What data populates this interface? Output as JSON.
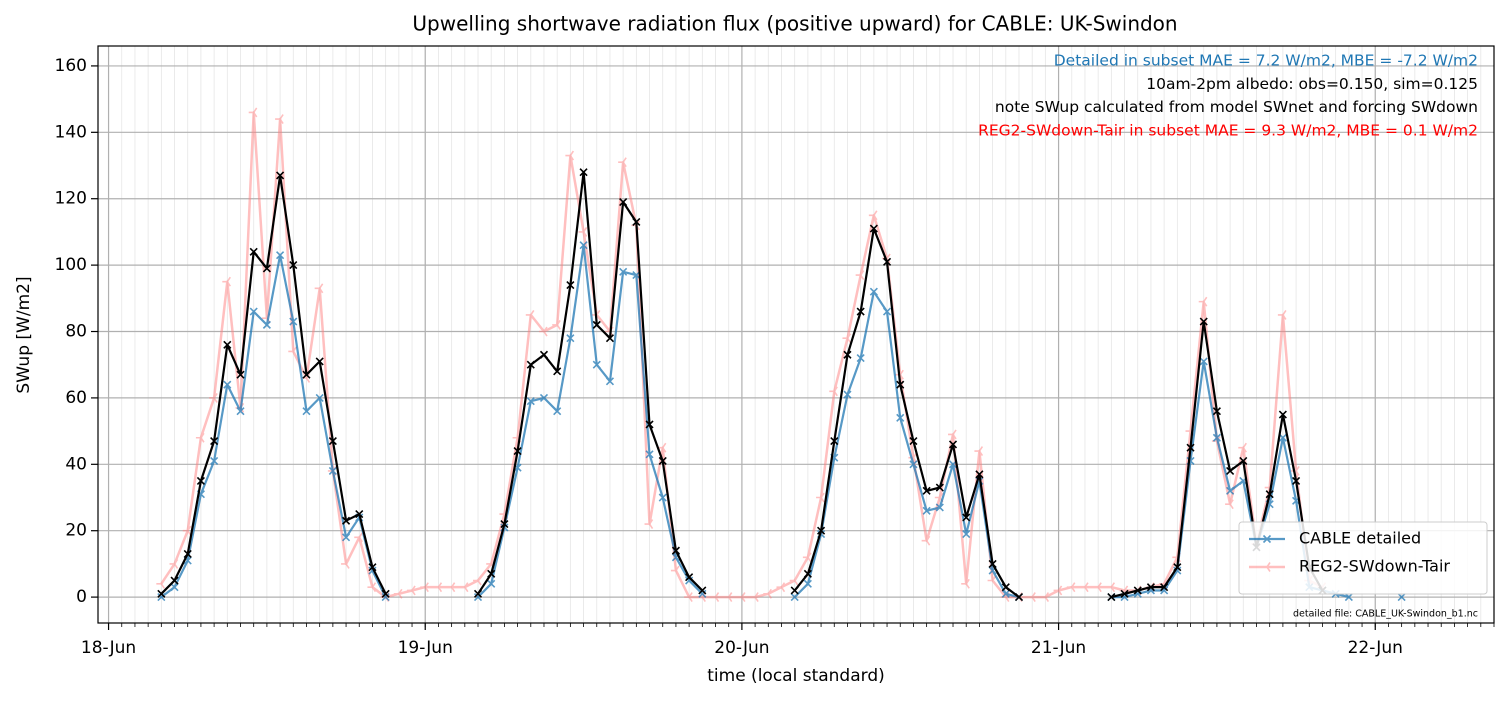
{
  "chart_data": {
    "type": "line",
    "title": "Upwelling shortwave radiation flux (positive upward) for CABLE: UK-Swindon",
    "xlabel": "time (local standard)",
    "ylabel": "SWup [W/m2]",
    "xlim": [
      -0.8,
      105
    ],
    "xticks": [
      {
        "value": 0,
        "label": "18-Jun"
      },
      {
        "value": 24,
        "label": "19-Jun"
      },
      {
        "value": 48,
        "label": "20-Jun"
      },
      {
        "value": 72,
        "label": "21-Jun"
      },
      {
        "value": 96,
        "label": "22-Jun"
      }
    ],
    "minor_grid_step": 1,
    "ylim": [
      -7.8,
      166
    ],
    "yticks": [
      0,
      20,
      40,
      60,
      80,
      100,
      120,
      140,
      160
    ],
    "grid": true,
    "legend": "lower right",
    "annotations": [
      {
        "text": "Detailed in subset MAE = 7.2 W/m2, MBE = -7.2 W/m2",
        "color": "#1f77b4"
      },
      {
        "text": "10am-2pm albedo: obs=0.150, sim=0.125",
        "color": "#000000"
      },
      {
        "text": "note SWup calculated from model SWnet and forcing SWdown",
        "color": "#000000"
      },
      {
        "text": "REG2-SWdown-Tair in subset MAE = 9.3 W/m2, MBE = 0.1 W/m2",
        "color": "#ff0000"
      }
    ],
    "footnote": "detailed file: CABLE_UK-Swindon_b1.nc",
    "x": [
      4,
      5,
      6,
      7,
      8,
      9,
      10,
      11,
      12,
      13,
      14,
      15,
      16,
      17,
      18,
      19,
      20,
      21,
      22,
      23,
      24,
      25,
      26,
      27,
      28,
      29,
      30,
      31,
      32,
      33,
      34,
      35,
      36,
      37,
      38,
      39,
      40,
      41,
      42,
      43,
      44,
      45,
      46,
      47,
      48,
      49,
      50,
      51,
      52,
      53,
      54,
      55,
      56,
      57,
      58,
      59,
      60,
      61,
      62,
      63,
      64,
      65,
      66,
      67,
      68,
      69,
      70,
      71,
      72,
      73,
      74,
      75,
      76,
      77,
      78,
      79,
      80,
      81,
      82,
      83,
      84,
      85,
      86,
      87,
      88,
      89,
      90,
      91,
      92,
      93,
      94,
      95,
      96,
      97,
      98
    ],
    "series": [
      {
        "name": "CABLE detailed",
        "color": "#1f77b4",
        "marker": "x",
        "values": [
          0,
          3,
          11,
          31,
          41,
          64,
          56,
          86,
          82,
          103,
          83,
          56,
          60,
          38,
          18,
          24,
          8,
          0,
          null,
          null,
          null,
          null,
          null,
          null,
          0,
          4,
          21,
          39,
          59,
          60,
          56,
          78,
          106,
          70,
          65,
          98,
          97,
          43,
          30,
          12,
          5,
          1,
          null,
          null,
          null,
          null,
          null,
          null,
          0,
          4,
          19,
          42,
          61,
          72,
          92,
          86,
          54,
          40,
          26,
          27,
          40,
          19,
          35,
          8,
          1,
          0,
          null,
          null,
          null,
          null,
          null,
          null,
          0,
          0,
          1,
          2,
          2,
          8,
          41,
          71,
          48,
          32,
          35,
          15,
          28,
          48,
          29,
          3,
          2,
          1,
          0,
          null,
          null,
          null,
          0
        ]
      },
      {
        "name": "REG2-SWdown-Tair",
        "color": "#ff8080",
        "marker": "tri",
        "values": [
          4,
          10,
          20,
          48,
          60,
          95,
          57,
          146,
          84,
          144,
          74,
          66,
          93,
          38,
          10,
          18,
          3,
          0,
          1,
          2,
          3,
          3,
          3,
          3,
          5,
          10,
          25,
          48,
          85,
          80,
          82,
          133,
          110,
          85,
          80,
          131,
          112,
          22,
          45,
          8,
          0,
          0,
          0,
          0,
          0,
          0,
          1,
          3,
          5,
          12,
          30,
          62,
          78,
          97,
          115,
          102,
          67,
          42,
          17,
          30,
          49,
          4,
          44,
          5,
          0,
          0,
          0,
          0,
          2,
          3,
          3,
          3,
          3,
          2,
          2,
          3,
          4,
          12,
          50,
          89,
          47,
          28,
          45,
          16,
          33,
          85,
          38,
          5,
          3,
          null,
          null,
          null,
          null,
          null,
          null
        ]
      },
      {
        "color": "#000000",
        "marker": "x",
        "values": [
          1,
          5,
          13,
          35,
          47,
          76,
          67,
          104,
          99,
          127,
          100,
          67,
          71,
          47,
          23,
          25,
          9,
          1,
          null,
          null,
          null,
          null,
          null,
          null,
          1,
          7,
          22,
          44,
          70,
          73,
          68,
          94,
          128,
          82,
          78,
          119,
          113,
          52,
          41,
          14,
          6,
          2,
          null,
          null,
          null,
          null,
          null,
          null,
          2,
          7,
          20,
          47,
          73,
          86,
          111,
          101,
          64,
          47,
          32,
          33,
          46,
          24,
          37,
          10,
          3,
          0,
          null,
          null,
          null,
          null,
          null,
          null,
          0,
          1,
          2,
          3,
          3,
          9,
          45,
          83,
          56,
          38,
          41,
          15,
          31,
          55,
          35,
          9,
          2,
          null,
          null,
          null,
          null,
          null,
          null
        ]
      }
    ]
  }
}
